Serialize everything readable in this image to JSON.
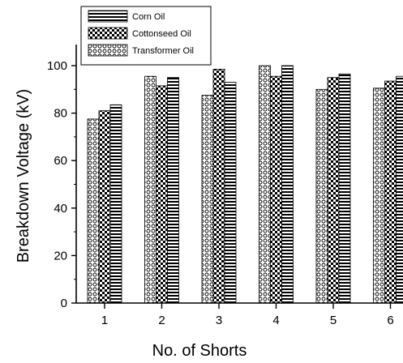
{
  "chart_data": {
    "type": "bar",
    "xlabel": "No. of Shorts",
    "ylabel": "Breakdown Voltage (kV)",
    "categories": [
      "1",
      "2",
      "3",
      "4",
      "5",
      "6"
    ],
    "y_ticks": [
      "0",
      "20",
      "40",
      "60",
      "80",
      "100"
    ],
    "ylim": [
      0,
      105
    ],
    "legend_position": "top-left",
    "grid": false,
    "series": [
      {
        "name": "Transformer Oil",
        "pattern": "circles",
        "values": [
          77.5,
          95.5,
          87.5,
          100,
          90,
          90.5
        ]
      },
      {
        "name": "Cottonseed Oil",
        "pattern": "checker",
        "values": [
          81,
          91.5,
          98.5,
          95.5,
          95,
          93.5
        ]
      },
      {
        "name": "Corn Oil",
        "pattern": "stripes",
        "values": [
          83.5,
          95,
          93,
          100,
          96.5,
          95.5
        ]
      }
    ],
    "legend_order": [
      "Corn Oil",
      "Cottonseed Oil",
      "Transformer Oil"
    ]
  }
}
